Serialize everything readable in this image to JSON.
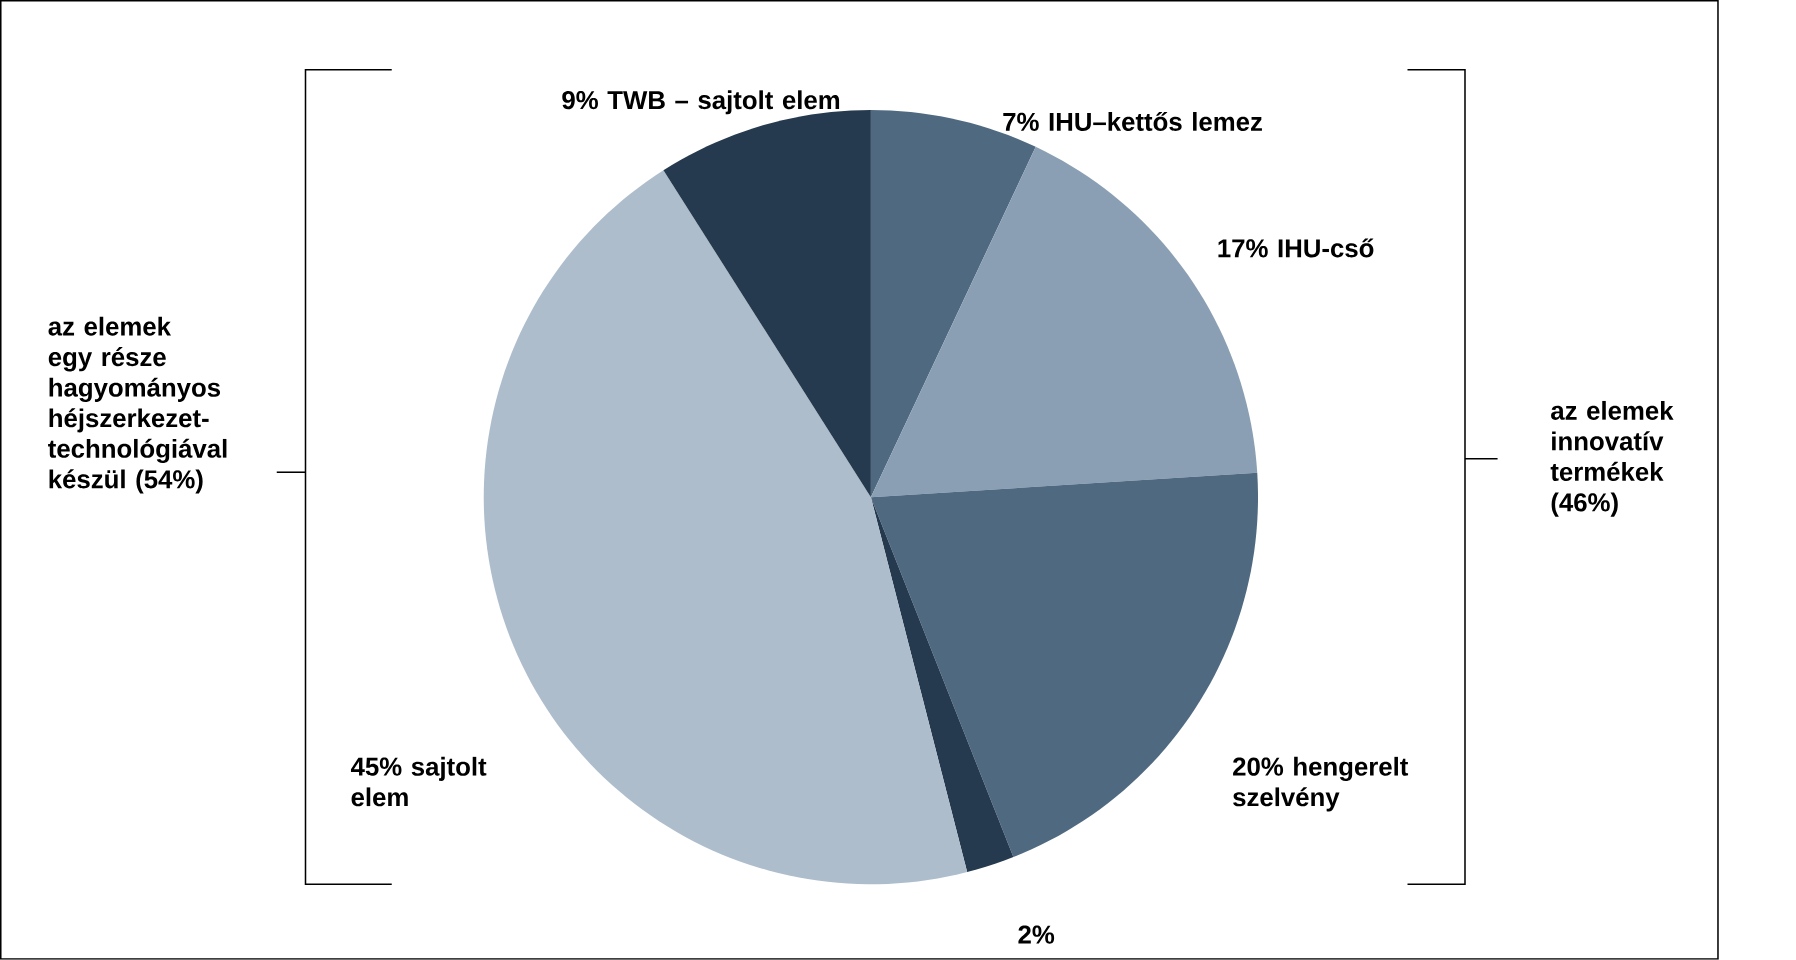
{
  "chart_data": {
    "type": "pie",
    "categories": [
      "IHU–kettős lemez",
      "IHU-cső",
      "hengerelt szelvény",
      null,
      "sajtolt elem",
      "TWB – sajtolt elem"
    ],
    "values": [
      7,
      17,
      20,
      2,
      45,
      9
    ],
    "value_labels": [
      "7%",
      "17%",
      "20%",
      "2%",
      "45%",
      "9%"
    ],
    "colors": [
      "#4f6a80",
      "#8a9fb3",
      "#4f6a80",
      "#253a4e",
      "#aebdcc",
      "#253a4e"
    ],
    "legend": false,
    "annotations": [
      "az elemek egy része hagyományos héjszerkezet-technológiával készül (54%)",
      "az elemek innovatív termékek (46%)"
    ]
  }
}
